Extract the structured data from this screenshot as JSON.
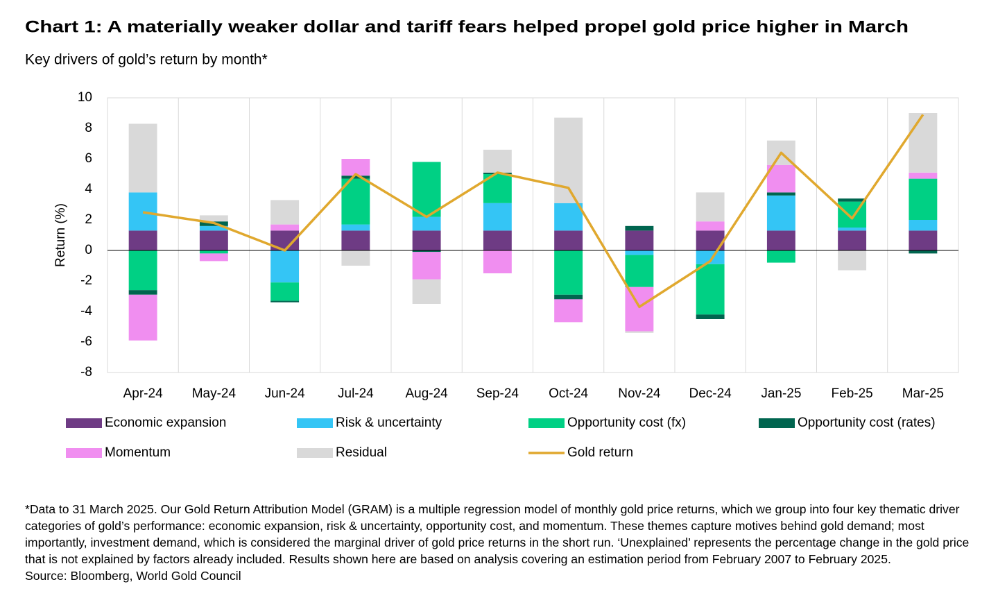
{
  "chart_data": {
    "type": "bar",
    "title": "Chart 1: A materially weaker dollar and tariff fears helped propel gold price higher in March",
    "subtitle": "Key drivers of gold’s return by month*",
    "y_label": "Return (%)",
    "categories": [
      "Apr-24",
      "May-24",
      "Jun-24",
      "Jul-24",
      "Aug-24",
      "Sep-24",
      "Oct-24",
      "Nov-24",
      "Dec-24",
      "Jan-25",
      "Feb-25",
      "Mar-25"
    ],
    "stacked": true,
    "series": [
      {
        "name": "Economic expansion",
        "color": "#6e3b84",
        "values": [
          1.3,
          1.3,
          1.3,
          1.3,
          1.3,
          1.3,
          1.3,
          1.3,
          1.3,
          1.3,
          1.3,
          1.3
        ]
      },
      {
        "name": "Risk & uncertainty",
        "color": "#34c5f5",
        "values": [
          2.5,
          0.3,
          -2.1,
          0.4,
          0.9,
          1.8,
          1.8,
          -0.3,
          -0.9,
          2.3,
          0.2,
          0.7
        ]
      },
      {
        "name": "Opportunity cost (fx)",
        "color": "#00d084",
        "values": [
          -2.6,
          -0.2,
          -1.2,
          3.0,
          3.6,
          1.9,
          -2.9,
          -2.1,
          -3.3,
          -0.8,
          1.7,
          2.7
        ]
      },
      {
        "name": "Opportunity cost (rates)",
        "color": "#00654f",
        "values": [
          -0.3,
          0.3,
          -0.1,
          0.2,
          -0.1,
          0.1,
          -0.3,
          0.3,
          -0.3,
          0.2,
          0.2,
          -0.2
        ]
      },
      {
        "name": "Momentum",
        "color": "#f08ef0",
        "values": [
          -3.0,
          -0.5,
          0.4,
          1.1,
          -1.8,
          -1.5,
          -1.5,
          -2.9,
          0.6,
          1.8,
          0.0,
          0.4
        ]
      },
      {
        "name": "Residual",
        "color": "#d9d9d9",
        "values": [
          4.5,
          0.4,
          1.6,
          -1.0,
          -1.6,
          1.5,
          5.6,
          -0.1,
          1.9,
          1.6,
          -1.3,
          3.9
        ]
      },
      {
        "name": "Gold return",
        "color": "#e0a82e",
        "type": "line",
        "values": [
          2.5,
          1.8,
          0.0,
          5.0,
          2.2,
          5.1,
          4.1,
          -3.7,
          -0.7,
          6.4,
          2.1,
          8.9
        ]
      }
    ],
    "ylim": [
      -8,
      10
    ],
    "yticks": [
      -8,
      -6,
      -4,
      -2,
      0,
      2,
      4,
      6,
      8,
      10
    ],
    "note": "*Data to 31 March 2025. Our Gold Return Attribution Model (GRAM) is a multiple regression model of monthly gold price returns, which we group into four key thematic driver categories of gold’s performance: economic expansion, risk & uncertainty, opportunity cost, and momentum. These themes capture motives behind gold demand; most importantly, investment demand, which is considered the marginal driver of gold price returns in the short run. ‘Unexplained’ represents the percentage change in the gold price that is not explained by factors already included. Results shown here are based on analysis covering an estimation period from February 2007 to February 2025.",
    "source": "Source: Bloomberg, World Gold Council"
  }
}
